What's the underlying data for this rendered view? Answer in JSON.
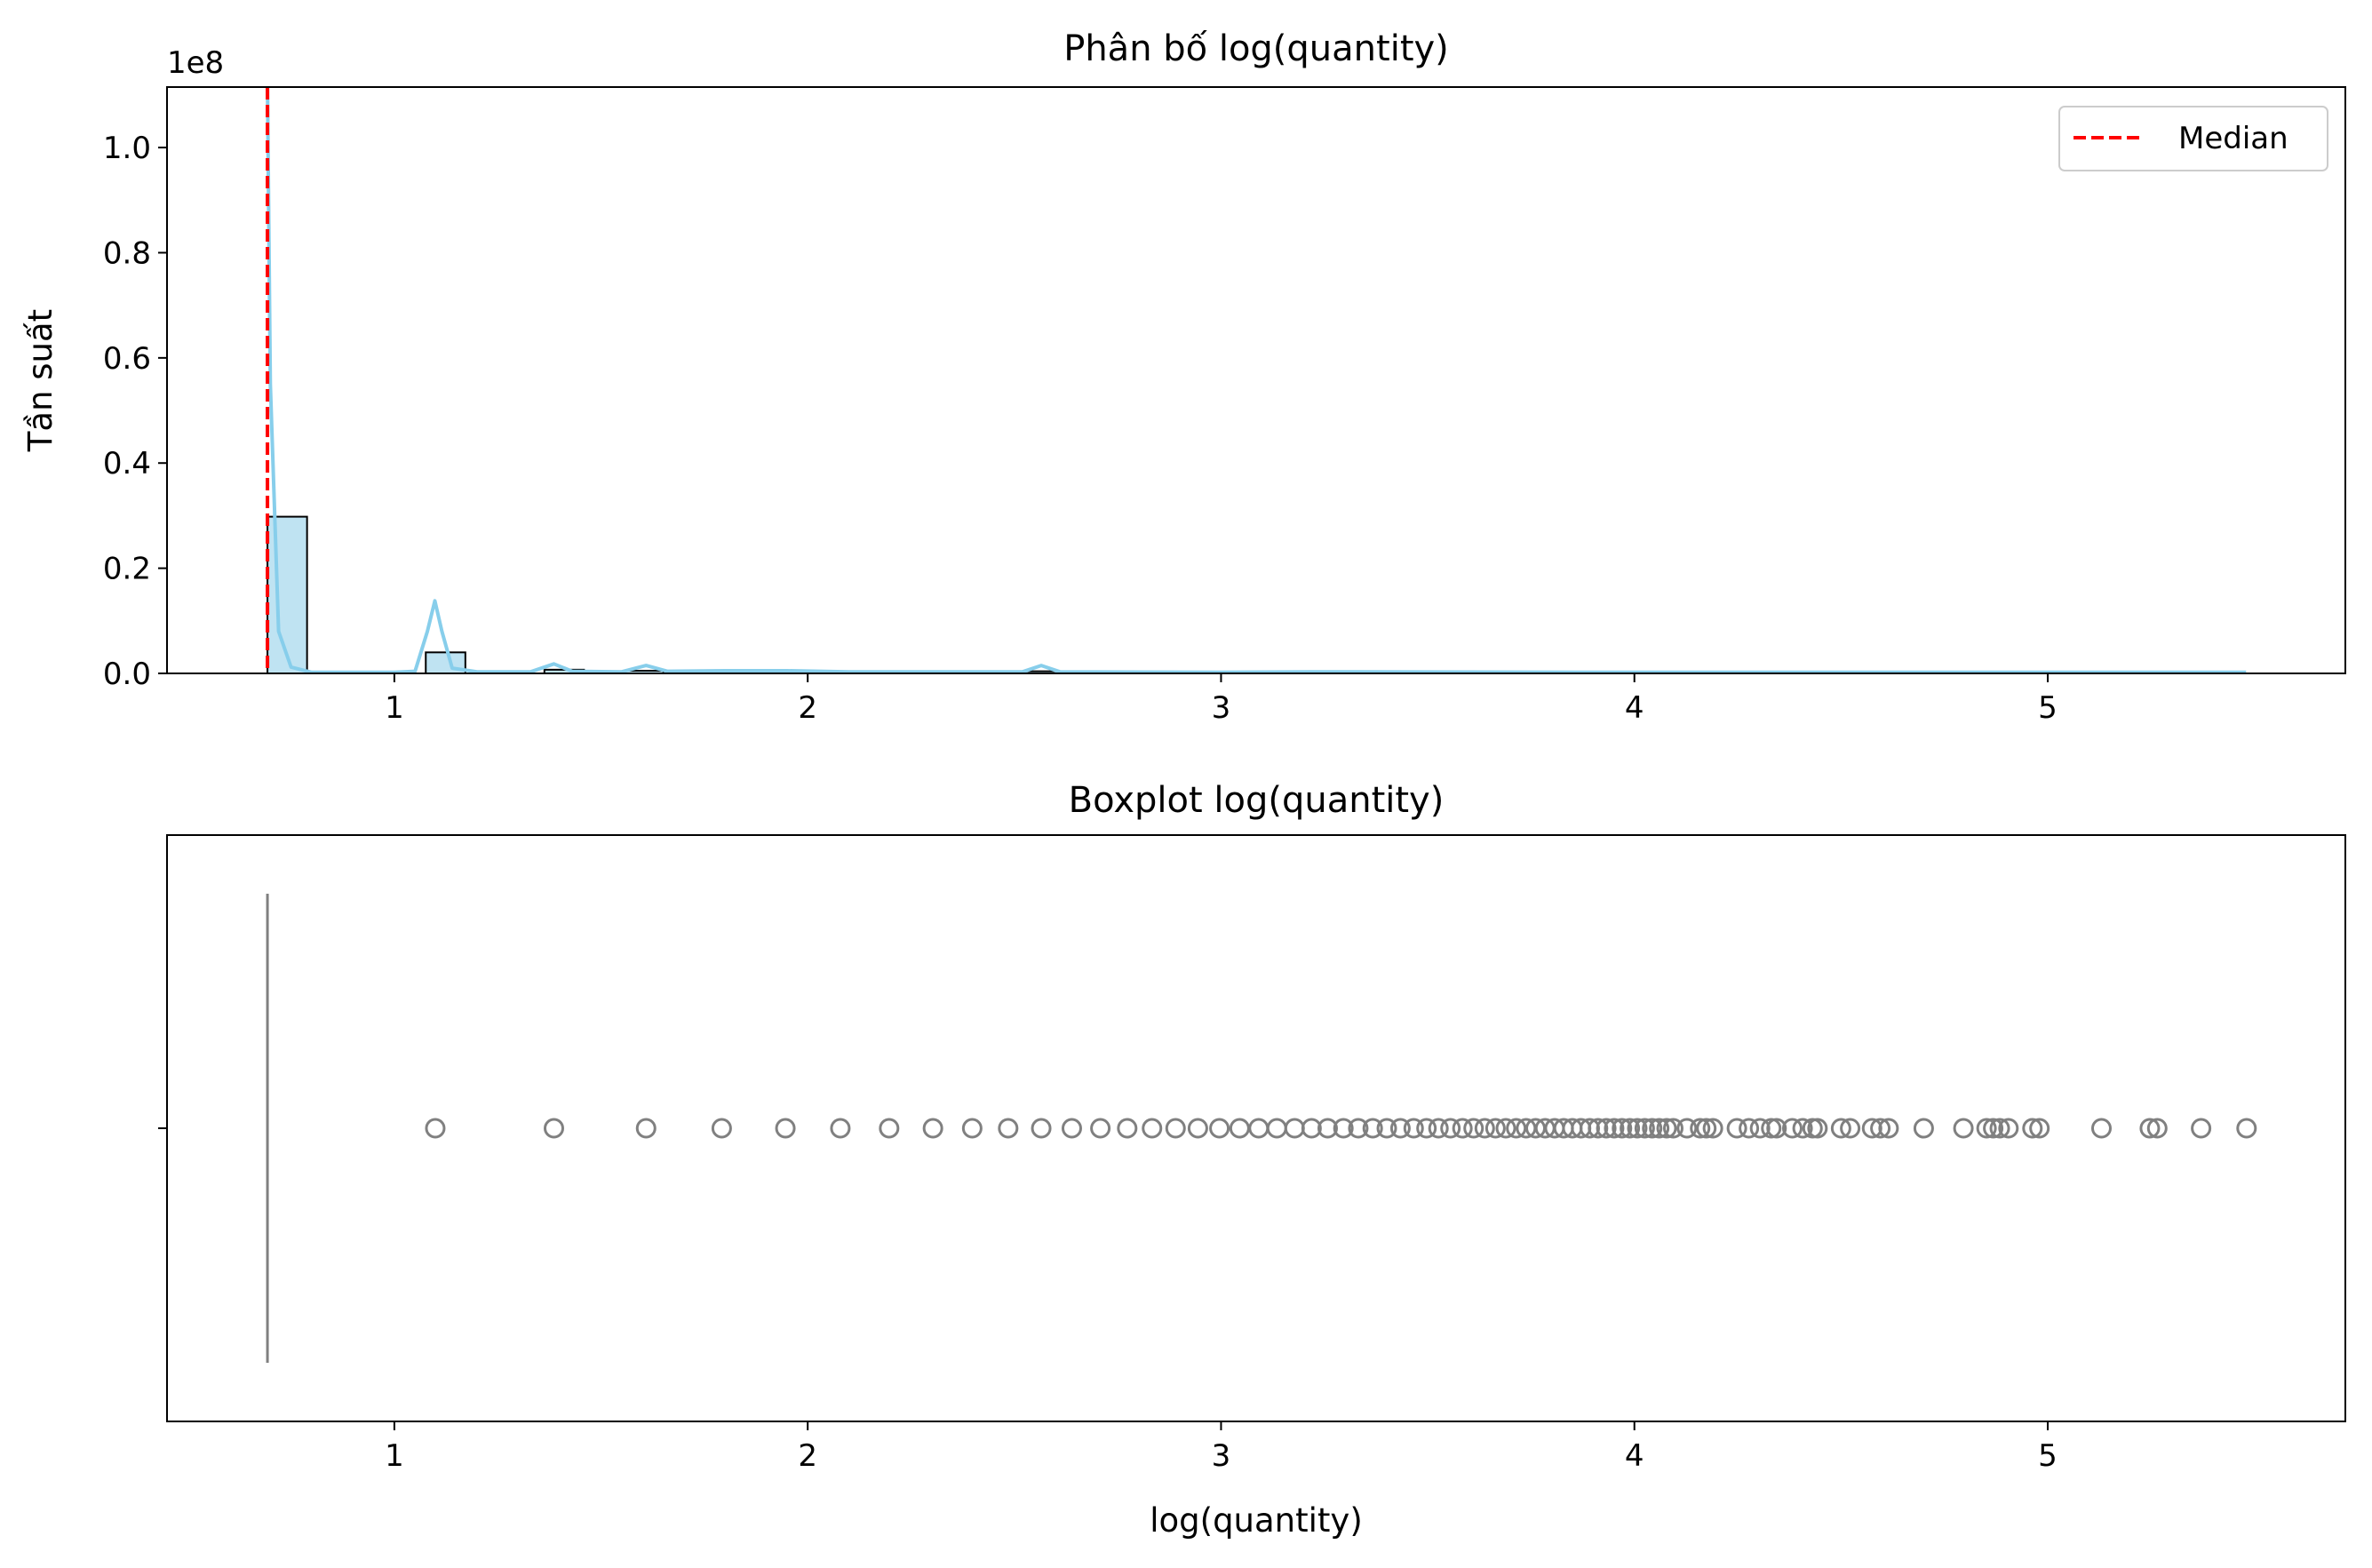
{
  "chart_data": [
    {
      "type": "histogram",
      "title": "Phân bố log(quantity)",
      "xlabel": "",
      "ylabel": "Tần suất",
      "y_scale_label": "1e8",
      "xlim": [
        0.45,
        5.72
      ],
      "ylim": [
        0,
        1.115
      ],
      "x_ticks": [
        1,
        2,
        3,
        4,
        5
      ],
      "x_tick_labels": [
        "1",
        "2",
        "3",
        "4",
        "5"
      ],
      "y_ticks": [
        0,
        0.2,
        0.4,
        0.6,
        0.8,
        1.0
      ],
      "y_tick_labels": [
        "0.0",
        "0.2",
        "0.4",
        "0.6",
        "0.8",
        "1.0"
      ],
      "bin_width": 0.0958,
      "bins": [
        {
          "x0": 0.693,
          "count": 0.298
        },
        {
          "x0": 1.076,
          "count": 0.04
        },
        {
          "x0": 1.363,
          "count": 0.007
        },
        {
          "x0": 1.555,
          "count": 0.005
        },
        {
          "x0": 2.513,
          "count": 0.004
        }
      ],
      "kde": [
        [
          0.693,
          1.115
        ],
        [
          0.7,
          0.55
        ],
        [
          0.72,
          0.08
        ],
        [
          0.75,
          0.012
        ],
        [
          0.8,
          0.002
        ],
        [
          0.9,
          0.002
        ],
        [
          1.0,
          0.002
        ],
        [
          1.05,
          0.004
        ],
        [
          1.08,
          0.08
        ],
        [
          1.098,
          0.138
        ],
        [
          1.115,
          0.08
        ],
        [
          1.14,
          0.01
        ],
        [
          1.2,
          0.003
        ],
        [
          1.33,
          0.003
        ],
        [
          1.386,
          0.018
        ],
        [
          1.43,
          0.004
        ],
        [
          1.55,
          0.003
        ],
        [
          1.609,
          0.015
        ],
        [
          1.66,
          0.004
        ],
        [
          1.8,
          0.005
        ],
        [
          1.95,
          0.005
        ],
        [
          2.1,
          0.003
        ],
        [
          2.4,
          0.003
        ],
        [
          2.52,
          0.003
        ],
        [
          2.565,
          0.015
        ],
        [
          2.61,
          0.003
        ],
        [
          3.0,
          0.002
        ],
        [
          3.22,
          0.003
        ],
        [
          4.0,
          0.002
        ],
        [
          5.0,
          0.002
        ],
        [
          5.48,
          0.002
        ]
      ],
      "median": 0.693,
      "legend": {
        "label": "Median",
        "placement": "upper right"
      },
      "colors": {
        "bar_fill": "#bfe3f2",
        "bar_edge": "#000000",
        "kde": "#87ceeb",
        "median": "#ff0000"
      }
    },
    {
      "type": "boxplot",
      "title": "Boxplot log(quantity)",
      "xlabel": "log(quantity)",
      "xlim": [
        0.45,
        5.72
      ],
      "x_ticks": [
        1,
        2,
        3,
        4,
        5
      ],
      "x_tick_labels": [
        "1",
        "2",
        "3",
        "4",
        "5"
      ],
      "box": {
        "q1": 0.693,
        "median": 0.693,
        "q3": 0.693,
        "whisker_low": 0.693,
        "whisker_high": 0.693
      },
      "outliers": [
        1.099,
        1.386,
        1.609,
        1.792,
        1.946,
        2.079,
        2.197,
        2.303,
        2.398,
        2.485,
        2.565,
        2.639,
        2.708,
        2.773,
        2.833,
        2.89,
        2.944,
        2.996,
        3.045,
        3.091,
        3.135,
        3.178,
        3.219,
        3.258,
        3.296,
        3.332,
        3.367,
        3.401,
        3.434,
        3.466,
        3.497,
        3.526,
        3.555,
        3.584,
        3.611,
        3.638,
        3.664,
        3.689,
        3.714,
        3.738,
        3.761,
        3.784,
        3.807,
        3.829,
        3.85,
        3.871,
        3.892,
        3.912,
        3.932,
        3.951,
        3.97,
        3.989,
        4.007,
        4.025,
        4.043,
        4.06,
        4.078,
        4.094,
        4.127,
        4.159,
        4.174,
        4.19,
        4.248,
        4.277,
        4.304,
        4.331,
        4.344,
        4.382,
        4.407,
        4.431,
        4.443,
        4.5,
        4.522,
        4.575,
        4.595,
        4.615,
        4.7,
        4.796,
        4.852,
        4.868,
        4.884,
        4.905,
        4.963,
        4.98,
        5.13,
        5.247,
        5.265,
        5.371,
        5.481
      ],
      "colors": {
        "box": "#808080",
        "outlier": "#808080"
      }
    }
  ]
}
